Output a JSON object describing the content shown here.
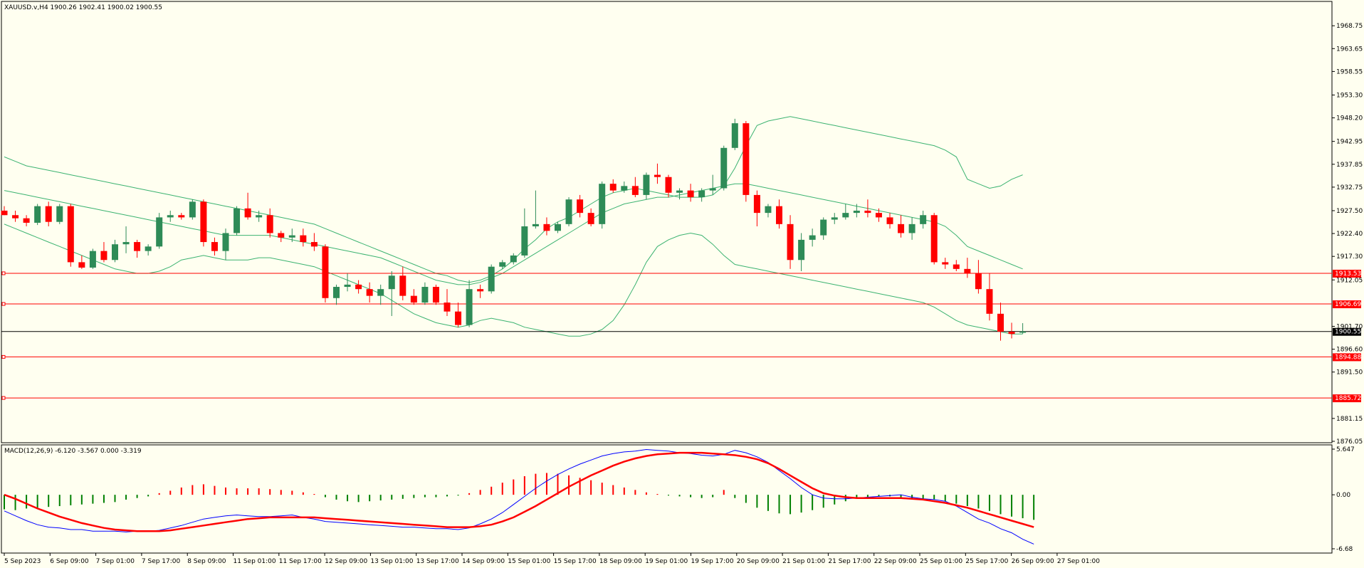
{
  "chart_data": [
    {
      "type": "candlestick",
      "title": "XAUUSD.v,H4  1900.26 1902.41 1900.02 1900.55",
      "ylim": [
        1876.05,
        1971.0
      ],
      "yticks": [
        "1968.75",
        "1963.65",
        "1958.55",
        "1953.30",
        "1948.20",
        "1942.95",
        "1937.85",
        "1932.75",
        "1927.50",
        "1922.40",
        "1917.30",
        "1912.05",
        "1901.70",
        "1896.60",
        "1891.50",
        "1881.15",
        "1876.05"
      ],
      "current_price": "1900.55",
      "levels": [
        {
          "value": 1913.53,
          "label": "1913.53"
        },
        {
          "value": 1906.69,
          "label": "1906.69"
        },
        {
          "value": 1894.88,
          "label": "1894.88"
        },
        {
          "value": 1885.72,
          "label": "1885.72"
        }
      ],
      "ohlc": [
        [
          1927.5,
          1928.5,
          1926.5,
          1926.5
        ],
        [
          1926.5,
          1927.5,
          1925.0,
          1925.8
        ],
        [
          1925.8,
          1926.5,
          1924.0,
          1924.8
        ],
        [
          1924.8,
          1929.0,
          1924.3,
          1928.5
        ],
        [
          1928.5,
          1929.5,
          1924.0,
          1925.0
        ],
        [
          1925.0,
          1929.0,
          1924.5,
          1928.5
        ],
        [
          1928.5,
          1929.0,
          1915.0,
          1916.0
        ],
        [
          1916.0,
          1917.5,
          1914.5,
          1914.8
        ],
        [
          1914.8,
          1919.0,
          1914.5,
          1918.5
        ],
        [
          1918.5,
          1920.5,
          1916.0,
          1916.5
        ],
        [
          1916.5,
          1921.0,
          1916.0,
          1920.0
        ],
        [
          1920.0,
          1924.0,
          1918.0,
          1920.5
        ],
        [
          1920.5,
          1921.0,
          1917.0,
          1918.5
        ],
        [
          1918.5,
          1920.0,
          1917.5,
          1919.5
        ],
        [
          1919.5,
          1927.0,
          1919.0,
          1926.0
        ],
        [
          1926.0,
          1927.5,
          1925.0,
          1926.5
        ],
        [
          1926.5,
          1927.0,
          1925.5,
          1926.0
        ],
        [
          1926.0,
          1930.0,
          1925.5,
          1929.5
        ],
        [
          1929.5,
          1930.0,
          1919.5,
          1920.5
        ],
        [
          1920.5,
          1921.5,
          1917.5,
          1918.5
        ],
        [
          1918.5,
          1923.5,
          1916.5,
          1922.5
        ],
        [
          1922.5,
          1928.5,
          1922.0,
          1928.0
        ],
        [
          1928.0,
          1931.5,
          1925.5,
          1926.0
        ],
        [
          1926.0,
          1927.5,
          1925.0,
          1926.5
        ],
        [
          1926.5,
          1928.0,
          1921.5,
          1922.5
        ],
        [
          1922.5,
          1923.0,
          1920.5,
          1921.5
        ],
        [
          1921.5,
          1923.5,
          1920.5,
          1922.0
        ],
        [
          1922.0,
          1923.5,
          1919.5,
          1920.5
        ],
        [
          1920.5,
          1922.5,
          1918.5,
          1919.5
        ],
        [
          1919.5,
          1920.0,
          1907.0,
          1908.0
        ],
        [
          1908.0,
          1911.0,
          1906.5,
          1910.5
        ],
        [
          1910.5,
          1913.5,
          1909.5,
          1911.0
        ],
        [
          1911.0,
          1912.0,
          1909.0,
          1910.0
        ],
        [
          1910.0,
          1911.5,
          1907.0,
          1908.5
        ],
        [
          1908.5,
          1911.0,
          1906.5,
          1910.0
        ],
        [
          1910.0,
          1914.0,
          1904.0,
          1913.0
        ],
        [
          1913.0,
          1915.0,
          1907.5,
          1908.5
        ],
        [
          1908.5,
          1910.0,
          1906.5,
          1907.0
        ],
        [
          1907.0,
          1911.5,
          1906.5,
          1910.5
        ],
        [
          1910.5,
          1911.0,
          1906.5,
          1907.0
        ],
        [
          1907.0,
          1910.0,
          1904.0,
          1905.0
        ],
        [
          1905.0,
          1907.0,
          1901.5,
          1902.0
        ],
        [
          1902.0,
          1912.0,
          1901.5,
          1910.0
        ],
        [
          1910.0,
          1911.0,
          1908.0,
          1909.5
        ],
        [
          1909.5,
          1915.5,
          1909.0,
          1915.0
        ],
        [
          1915.0,
          1916.5,
          1914.5,
          1916.0
        ],
        [
          1916.0,
          1918.0,
          1915.5,
          1917.5
        ],
        [
          1917.5,
          1928.0,
          1917.0,
          1924.0
        ],
        [
          1924.0,
          1932.0,
          1923.5,
          1924.5
        ],
        [
          1924.5,
          1926.0,
          1922.0,
          1923.0
        ],
        [
          1923.0,
          1925.0,
          1922.5,
          1924.5
        ],
        [
          1924.5,
          1930.5,
          1924.0,
          1930.0
        ],
        [
          1930.0,
          1931.0,
          1926.0,
          1927.0
        ],
        [
          1927.0,
          1928.0,
          1924.0,
          1924.5
        ],
        [
          1924.5,
          1934.0,
          1923.5,
          1933.5
        ],
        [
          1933.5,
          1934.5,
          1931.5,
          1932.0
        ],
        [
          1932.0,
          1934.0,
          1931.5,
          1933.0
        ],
        [
          1933.0,
          1935.0,
          1930.5,
          1931.0
        ],
        [
          1931.0,
          1936.0,
          1930.0,
          1935.5
        ],
        [
          1935.5,
          1938.0,
          1933.5,
          1935.0
        ],
        [
          1935.0,
          1935.5,
          1930.5,
          1931.5
        ],
        [
          1931.5,
          1932.5,
          1930.0,
          1932.0
        ],
        [
          1932.0,
          1933.5,
          1929.5,
          1930.5
        ],
        [
          1930.5,
          1932.5,
          1929.5,
          1932.0
        ],
        [
          1932.0,
          1935.5,
          1931.0,
          1932.5
        ],
        [
          1932.5,
          1942.0,
          1932.0,
          1941.5
        ],
        [
          1941.5,
          1948.0,
          1941.0,
          1947.0
        ],
        [
          1947.0,
          1947.5,
          1929.5,
          1931.0
        ],
        [
          1931.0,
          1932.0,
          1924.0,
          1927.0
        ],
        [
          1927.0,
          1929.0,
          1926.0,
          1928.5
        ],
        [
          1928.5,
          1930.0,
          1923.5,
          1924.5
        ],
        [
          1924.5,
          1926.5,
          1914.5,
          1916.5
        ],
        [
          1916.5,
          1922.5,
          1914.0,
          1921.0
        ],
        [
          1921.0,
          1923.5,
          1919.5,
          1922.0
        ],
        [
          1922.0,
          1926.0,
          1921.0,
          1925.5
        ],
        [
          1925.5,
          1927.0,
          1924.5,
          1926.0
        ],
        [
          1926.0,
          1929.0,
          1925.5,
          1927.0
        ],
        [
          1927.0,
          1929.0,
          1926.0,
          1927.5
        ],
        [
          1927.5,
          1930.0,
          1926.0,
          1927.0
        ],
        [
          1927.0,
          1928.0,
          1925.0,
          1926.0
        ],
        [
          1926.0,
          1927.0,
          1923.5,
          1924.5
        ],
        [
          1924.5,
          1926.5,
          1921.5,
          1922.5
        ],
        [
          1922.5,
          1926.0,
          1921.0,
          1924.5
        ],
        [
          1924.5,
          1927.5,
          1923.5,
          1926.5
        ],
        [
          1926.5,
          1927.0,
          1915.5,
          1916.0
        ],
        [
          1916.0,
          1917.0,
          1914.5,
          1915.5
        ],
        [
          1915.5,
          1916.5,
          1914.0,
          1914.5
        ],
        [
          1914.5,
          1917.0,
          1912.5,
          1913.5
        ],
        [
          1913.5,
          1916.5,
          1909.0,
          1910.0
        ],
        [
          1910.0,
          1913.5,
          1903.0,
          1904.5
        ],
        [
          1904.5,
          1907.0,
          1898.5,
          1900.5
        ],
        [
          1900.5,
          1902.5,
          1899.0,
          1900.0
        ],
        [
          1900.26,
          1902.41,
          1900.02,
          1900.55
        ]
      ],
      "bollinger": {
        "upper": [
          1939.5,
          1938.5,
          1937.5,
          1937.0,
          1936.5,
          1936.0,
          1935.5,
          1935.0,
          1934.5,
          1934.0,
          1933.5,
          1933.0,
          1932.5,
          1932.0,
          1931.5,
          1931.0,
          1930.5,
          1930.0,
          1929.5,
          1929.0,
          1928.5,
          1928.0,
          1927.5,
          1927.0,
          1926.5,
          1926.0,
          1925.5,
          1925.0,
          1924.5,
          1923.5,
          1922.5,
          1921.5,
          1920.5,
          1919.5,
          1918.5,
          1917.5,
          1916.5,
          1915.5,
          1914.5,
          1913.5,
          1913.0,
          1912.0,
          1911.5,
          1912.0,
          1913.0,
          1914.5,
          1916.5,
          1919.0,
          1921.0,
          1923.5,
          1925.0,
          1926.0,
          1927.5,
          1929.0,
          1930.5,
          1931.5,
          1932.0,
          1932.5,
          1932.0,
          1931.5,
          1931.0,
          1930.5,
          1930.5,
          1930.5,
          1931.0,
          1933.0,
          1937.0,
          1942.0,
          1946.5,
          1947.5,
          1948.0,
          1948.5,
          1948.0,
          1947.5,
          1947.0,
          1946.5,
          1946.0,
          1945.5,
          1945.0,
          1944.5,
          1944.0,
          1943.5,
          1943.0,
          1942.5,
          1942.0,
          1941.0,
          1939.5,
          1934.5,
          1933.5,
          1932.5,
          1933.0,
          1934.5,
          1935.5
        ],
        "middle": [
          1932.0,
          1931.5,
          1931.0,
          1930.5,
          1930.0,
          1929.5,
          1929.0,
          1928.5,
          1928.0,
          1927.5,
          1927.0,
          1926.5,
          1926.0,
          1925.5,
          1925.0,
          1924.5,
          1924.0,
          1923.5,
          1923.0,
          1922.5,
          1922.0,
          1922.0,
          1922.0,
          1922.0,
          1922.0,
          1921.5,
          1921.0,
          1920.5,
          1920.0,
          1919.5,
          1919.0,
          1918.5,
          1918.0,
          1917.5,
          1917.0,
          1916.0,
          1915.0,
          1914.0,
          1913.0,
          1912.0,
          1911.5,
          1911.0,
          1911.0,
          1911.5,
          1912.5,
          1913.5,
          1915.0,
          1916.5,
          1918.0,
          1919.5,
          1921.0,
          1922.5,
          1924.0,
          1925.5,
          1927.0,
          1928.0,
          1929.0,
          1929.5,
          1930.0,
          1930.5,
          1930.5,
          1931.0,
          1931.5,
          1932.0,
          1932.5,
          1933.0,
          1933.5,
          1933.5,
          1933.0,
          1932.5,
          1932.0,
          1931.5,
          1931.0,
          1930.5,
          1930.0,
          1929.5,
          1929.0,
          1928.5,
          1928.0,
          1927.5,
          1927.0,
          1926.5,
          1926.0,
          1925.5,
          1925.0,
          1924.0,
          1922.0,
          1919.5,
          1918.5,
          1917.5,
          1916.5,
          1915.5,
          1914.5
        ],
        "lower": [
          1924.5,
          1923.5,
          1922.5,
          1921.5,
          1920.5,
          1919.5,
          1918.5,
          1917.5,
          1916.5,
          1915.5,
          1914.5,
          1914.0,
          1913.5,
          1913.5,
          1914.0,
          1915.0,
          1916.5,
          1917.0,
          1917.5,
          1917.0,
          1916.5,
          1916.5,
          1916.5,
          1917.0,
          1917.0,
          1916.5,
          1916.0,
          1915.5,
          1915.0,
          1914.0,
          1913.0,
          1912.0,
          1911.0,
          1910.0,
          1909.0,
          1907.5,
          1906.0,
          1904.5,
          1903.5,
          1902.5,
          1902.0,
          1901.5,
          1902.0,
          1903.0,
          1903.5,
          1903.0,
          1902.5,
          1901.5,
          1901.0,
          1900.5,
          1900.0,
          1899.5,
          1899.5,
          1900.0,
          1901.0,
          1903.0,
          1906.5,
          1911.0,
          1916.0,
          1919.5,
          1921.0,
          1922.0,
          1922.5,
          1922.0,
          1920.0,
          1917.5,
          1915.5,
          1915.0,
          1914.5,
          1914.0,
          1913.5,
          1913.0,
          1912.5,
          1912.0,
          1911.5,
          1911.0,
          1910.5,
          1910.0,
          1909.5,
          1909.0,
          1908.5,
          1908.0,
          1907.5,
          1907.0,
          1906.0,
          1904.5,
          1903.0,
          1902.0,
          1901.5,
          1901.0,
          1900.5,
          1900.0,
          1900.0
        ]
      }
    },
    {
      "type": "macd",
      "title": "MACD(12,26,9) -6.120 -3.567 0.000 -3.319",
      "ylim": [
        -6.68,
        5.647
      ],
      "yticks": [
        "5.647",
        "0.00",
        "-6.68"
      ],
      "histogram": [
        -1.8,
        -1.9,
        -1.7,
        -1.6,
        -1.5,
        -1.4,
        -1.3,
        -1.2,
        -1.1,
        -1.0,
        -0.9,
        -0.6,
        -0.4,
        -0.2,
        0.2,
        0.5,
        0.9,
        1.2,
        1.3,
        1.1,
        0.9,
        0.8,
        0.8,
        0.8,
        0.7,
        0.6,
        0.5,
        0.3,
        0.1,
        -0.3,
        -0.6,
        -0.8,
        -0.9,
        -0.8,
        -0.7,
        -0.6,
        -0.5,
        -0.4,
        -0.3,
        -0.3,
        -0.2,
        -0.1,
        0.2,
        0.6,
        1.0,
        1.5,
        1.9,
        2.3,
        2.6,
        2.7,
        2.6,
        2.4,
        2.1,
        1.8,
        1.5,
        1.2,
        0.9,
        0.6,
        0.3,
        0.1,
        -0.1,
        -0.2,
        -0.3,
        -0.4,
        -0.3,
        0.6,
        -0.4,
        -1.0,
        -1.6,
        -2.0,
        -2.3,
        -2.4,
        -2.2,
        -1.9,
        -1.6,
        -1.2,
        -0.8,
        -0.5,
        -0.3,
        -0.2,
        -0.2,
        -0.3,
        -0.4,
        -0.5,
        -0.6,
        -0.8,
        -1.1,
        -1.4,
        -1.7,
        -2.0,
        -2.4,
        -2.7,
        -2.9,
        -3.1
      ],
      "macd": [
        -2.0,
        -2.6,
        -3.2,
        -3.7,
        -4.0,
        -4.1,
        -4.3,
        -4.3,
        -4.5,
        -4.5,
        -4.5,
        -4.6,
        -4.5,
        -4.5,
        -4.4,
        -4.1,
        -3.8,
        -3.4,
        -3.0,
        -2.8,
        -2.6,
        -2.5,
        -2.6,
        -2.7,
        -2.7,
        -2.6,
        -2.5,
        -2.8,
        -3.0,
        -3.3,
        -3.4,
        -3.5,
        -3.6,
        -3.7,
        -3.8,
        -3.9,
        -4.0,
        -4.0,
        -4.1,
        -4.2,
        -4.2,
        -4.3,
        -4.1,
        -3.6,
        -3.0,
        -2.2,
        -1.2,
        -0.2,
        0.8,
        1.7,
        2.5,
        3.2,
        3.8,
        4.3,
        4.8,
        5.1,
        5.3,
        5.4,
        5.6,
        5.5,
        5.4,
        5.2,
        5.1,
        4.9,
        4.8,
        5.0,
        5.5,
        5.2,
        4.7,
        4.0,
        3.0,
        2.0,
        0.9,
        0.0,
        -0.4,
        -0.5,
        -0.5,
        -0.4,
        -0.3,
        -0.2,
        -0.1,
        0.0,
        -0.3,
        -0.5,
        -0.6,
        -0.8,
        -1.4,
        -2.2,
        -3.0,
        -3.5,
        -4.2,
        -4.7,
        -5.5,
        -6.1
      ],
      "signal": [
        0.0,
        -0.5,
        -1.1,
        -1.7,
        -2.2,
        -2.7,
        -3.1,
        -3.5,
        -3.8,
        -4.1,
        -4.3,
        -4.4,
        -4.5,
        -4.5,
        -4.5,
        -4.4,
        -4.2,
        -4.0,
        -3.8,
        -3.6,
        -3.4,
        -3.2,
        -3.0,
        -2.9,
        -2.8,
        -2.8,
        -2.8,
        -2.8,
        -2.8,
        -2.9,
        -3.0,
        -3.1,
        -3.2,
        -3.3,
        -3.4,
        -3.5,
        -3.6,
        -3.7,
        -3.8,
        -3.9,
        -4.0,
        -4.0,
        -4.0,
        -3.9,
        -3.7,
        -3.3,
        -2.8,
        -2.1,
        -1.4,
        -0.6,
        0.2,
        1.0,
        1.7,
        2.4,
        3.0,
        3.6,
        4.1,
        4.5,
        4.8,
        5.0,
        5.1,
        5.2,
        5.2,
        5.2,
        5.1,
        5.0,
        4.9,
        4.7,
        4.4,
        3.9,
        3.2,
        2.4,
        1.6,
        0.8,
        0.2,
        -0.1,
        -0.3,
        -0.4,
        -0.4,
        -0.4,
        -0.4,
        -0.4,
        -0.5,
        -0.6,
        -0.8,
        -1.0,
        -1.3,
        -1.6,
        -2.0,
        -2.4,
        -2.8,
        -3.2,
        -3.6,
        -4.0
      ]
    }
  ],
  "xticks": [
    "5 Sep 2023",
    "6 Sep 09:00",
    "7 Sep 01:00",
    "7 Sep 17:00",
    "8 Sep 09:00",
    "11 Sep 01:00",
    "11 Sep 17:00",
    "12 Sep 09:00",
    "13 Sep 01:00",
    "13 Sep 17:00",
    "14 Sep 09:00",
    "15 Sep 01:00",
    "15 Sep 17:00",
    "18 Sep 09:00",
    "19 Sep 01:00",
    "19 Sep 17:00",
    "20 Sep 09:00",
    "21 Sep 01:00",
    "21 Sep 17:00",
    "22 Sep 09:00",
    "25 Sep 01:00",
    "25 Sep 17:00",
    "26 Sep 09:00",
    "27 Sep 01:00"
  ],
  "colors": {
    "bull": "#2e8b57",
    "bear": "#ff0000",
    "band": "#3cb371",
    "level": "#ff0000",
    "macd": "#0000ff",
    "signal": "#ff0000",
    "hist_pos": "#ff0000",
    "hist_neg": "#008000"
  }
}
